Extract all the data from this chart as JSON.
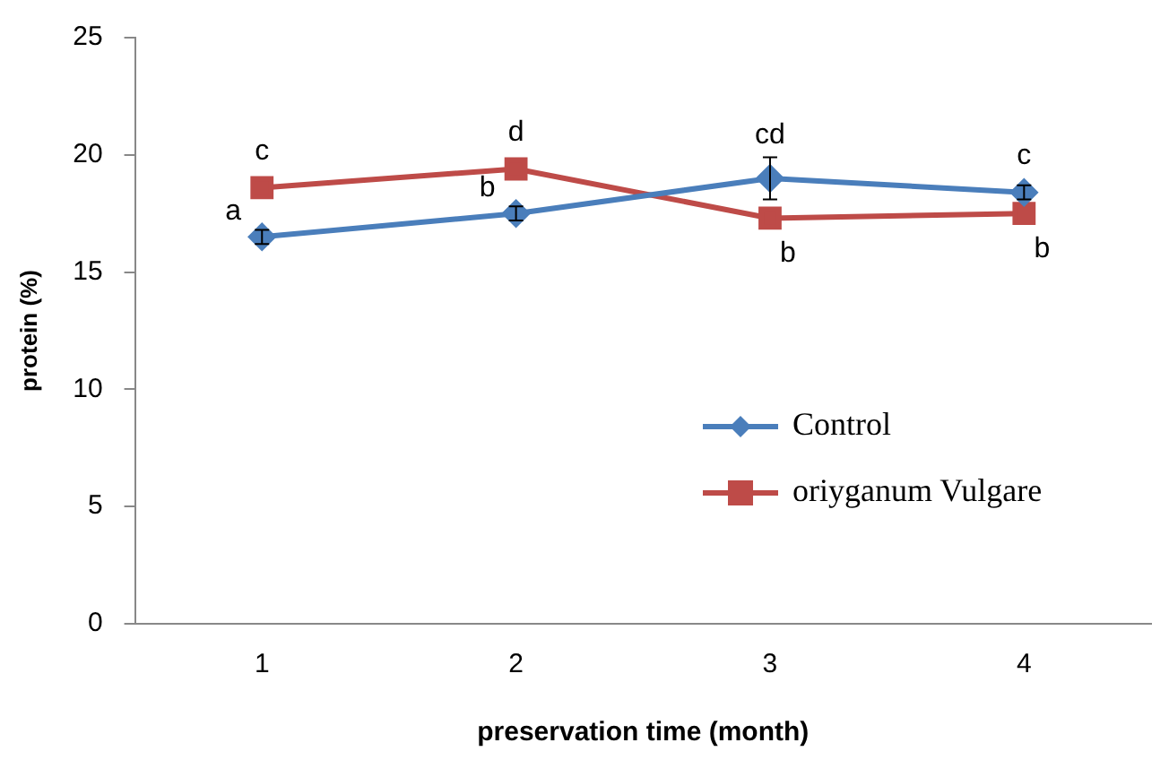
{
  "chart_data": {
    "type": "line",
    "xlabel": "preservation time (month)",
    "ylabel": "protein (%)",
    "categories": [
      "1",
      "2",
      "3",
      "4"
    ],
    "series": [
      {
        "name": "Control",
        "color": "#4a7ebb",
        "marker": "diamond",
        "values": [
          16.5,
          17.5,
          19.0,
          18.4
        ],
        "errors": [
          0.3,
          0.3,
          0.9,
          0.3
        ]
      },
      {
        "name": "oriyganum Vulgare",
        "color": "#be4b48",
        "marker": "square",
        "values": [
          18.6,
          19.4,
          17.3,
          17.5
        ]
      }
    ],
    "ylim": [
      0,
      25
    ],
    "yticks": [
      0,
      5,
      10,
      15,
      20,
      25
    ],
    "grid": false,
    "legend": "bottom right",
    "annotations": [
      {
        "text": "c",
        "x": "1",
        "y": 18.6
      },
      {
        "text": "a",
        "x": "1",
        "y": 16.5
      },
      {
        "text": "d",
        "x": "2",
        "y": 19.4
      },
      {
        "text": "b",
        "x": "2",
        "y": 17.5
      },
      {
        "text": "cd",
        "x": "3",
        "y": 19.0
      },
      {
        "text": "b",
        "x": "3",
        "y": 17.3
      },
      {
        "text": "c",
        "x": "4",
        "y": 18.4
      },
      {
        "text": "b",
        "x": "4",
        "y": 17.5
      }
    ]
  }
}
